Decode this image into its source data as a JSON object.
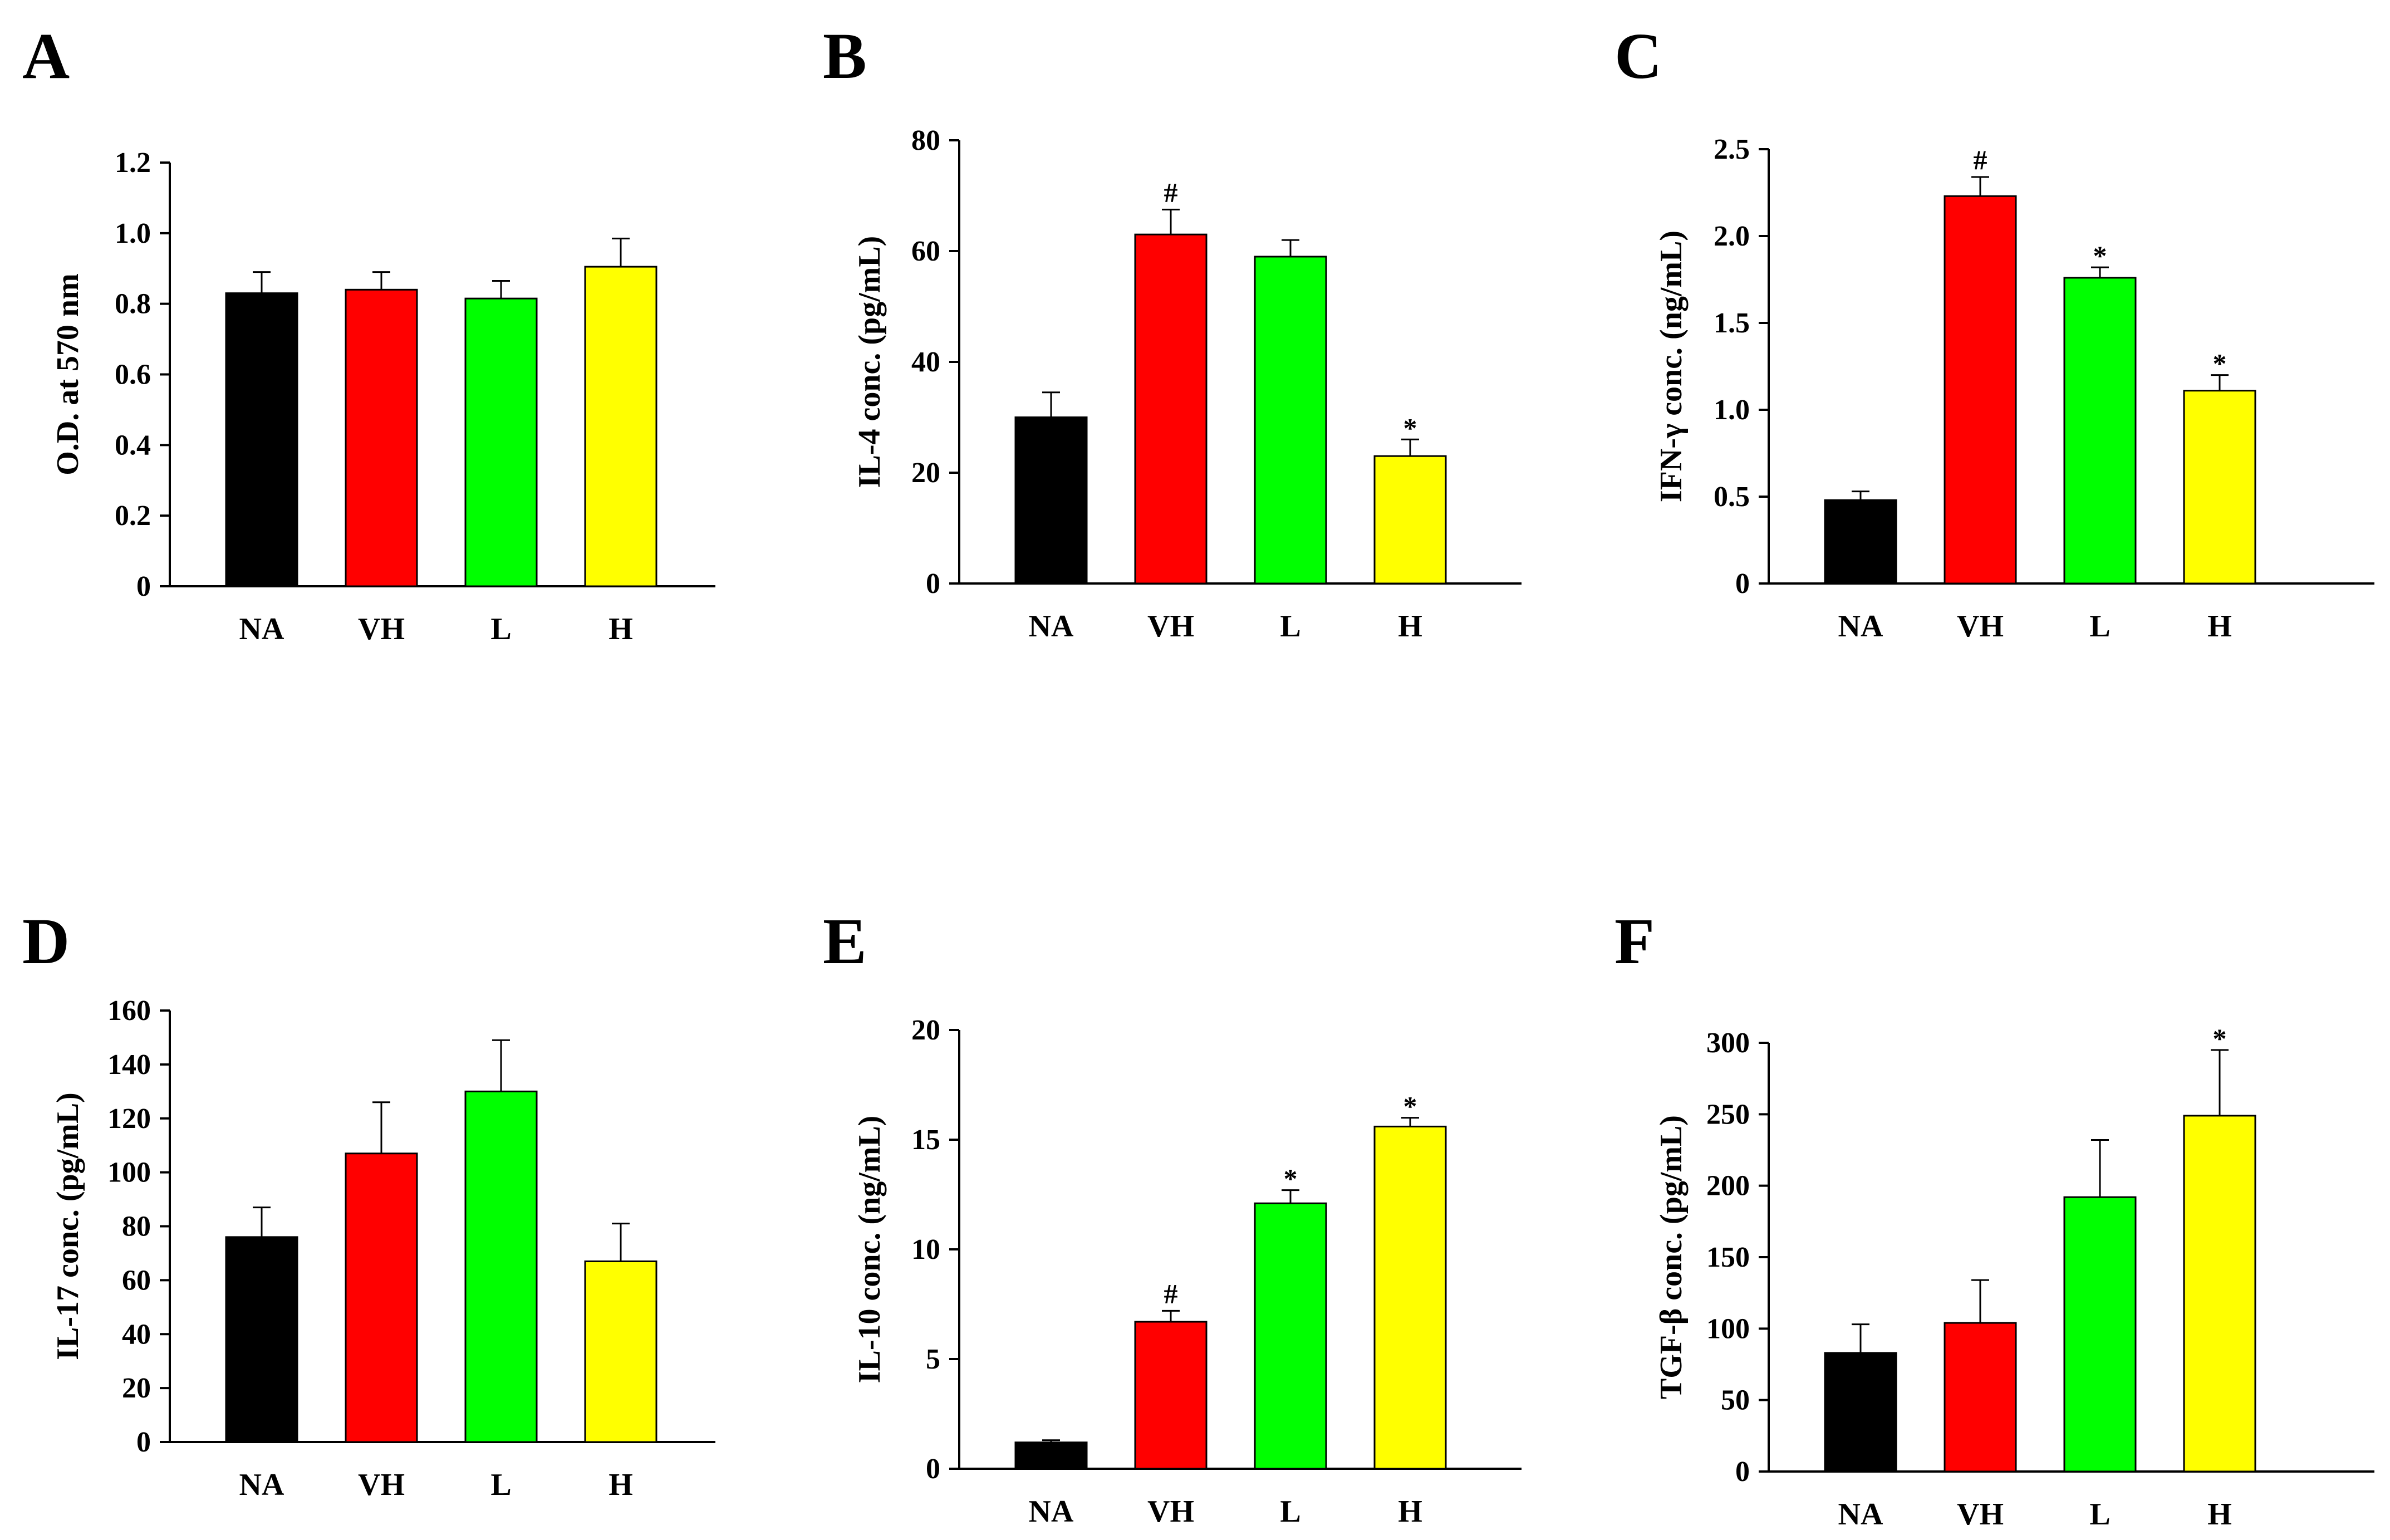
{
  "chart_data": [
    {
      "type": "bar",
      "panel": "A",
      "categories": [
        "NA",
        "VH",
        "L",
        "H"
      ],
      "values": [
        0.83,
        0.84,
        0.815,
        0.905
      ],
      "errors": [
        0.06,
        0.05,
        0.05,
        0.08
      ],
      "significance": [
        "",
        "",
        "",
        ""
      ],
      "colors": [
        "#000000",
        "#ff0000",
        "#00ff00",
        "#ffff00"
      ],
      "ylabel": "O.D. at 570 nm",
      "ylim": [
        0,
        1.2
      ],
      "yticks": [
        "0",
        "0.2",
        "0.4",
        "0.6",
        "0.8",
        "1.0",
        "1.2"
      ]
    },
    {
      "type": "bar",
      "panel": "B",
      "categories": [
        "NA",
        "VH",
        "L",
        "H"
      ],
      "values": [
        30,
        63,
        59,
        23
      ],
      "errors": [
        4.5,
        4.5,
        3,
        3
      ],
      "significance": [
        "",
        "#",
        "",
        "*"
      ],
      "colors": [
        "#000000",
        "#ff0000",
        "#00ff00",
        "#ffff00"
      ],
      "ylabel": "IL-4 conc. (pg/mL)",
      "ylim": [
        0,
        80
      ],
      "yticks": [
        "0",
        "20",
        "40",
        "60",
        "80"
      ]
    },
    {
      "type": "bar",
      "panel": "C",
      "categories": [
        "NA",
        "VH",
        "L",
        "H"
      ],
      "values": [
        0.48,
        2.23,
        1.76,
        1.11
      ],
      "errors": [
        0.05,
        0.11,
        0.06,
        0.09
      ],
      "significance": [
        "",
        "#",
        "*",
        "*"
      ],
      "colors": [
        "#000000",
        "#ff0000",
        "#00ff00",
        "#ffff00"
      ],
      "ylabel": "IFN-γ conc. (ng/mL)",
      "ylim": [
        0,
        2.5
      ],
      "yticks": [
        "0",
        "0.5",
        "1.0",
        "1.5",
        "2.0",
        "2.5"
      ]
    },
    {
      "type": "bar",
      "panel": "D",
      "categories": [
        "NA",
        "VH",
        "L",
        "H"
      ],
      "values": [
        76,
        107,
        130,
        67
      ],
      "errors": [
        11,
        19,
        19,
        14
      ],
      "significance": [
        "",
        "",
        "",
        ""
      ],
      "colors": [
        "#000000",
        "#ff0000",
        "#00ff00",
        "#ffff00"
      ],
      "ylabel": "IL-17 conc. (pg/mL)",
      "ylim": [
        0,
        160
      ],
      "yticks": [
        "0",
        "20",
        "40",
        "60",
        "80",
        "100",
        "120",
        "140",
        "160"
      ]
    },
    {
      "type": "bar",
      "panel": "E",
      "categories": [
        "NA",
        "VH",
        "L",
        "H"
      ],
      "values": [
        1.2,
        6.7,
        12.1,
        15.6
      ],
      "errors": [
        0.1,
        0.5,
        0.6,
        0.4
      ],
      "significance": [
        "",
        "#",
        "*",
        "*"
      ],
      "colors": [
        "#000000",
        "#ff0000",
        "#00ff00",
        "#ffff00"
      ],
      "ylabel": "IL-10 conc. (ng/mL)",
      "ylim": [
        0,
        20
      ],
      "yticks": [
        "0",
        "5",
        "10",
        "15",
        "20"
      ]
    },
    {
      "type": "bar",
      "panel": "F",
      "categories": [
        "NA",
        "VH",
        "L",
        "H"
      ],
      "values": [
        83,
        104,
        192,
        249
      ],
      "errors": [
        20,
        30,
        40,
        46
      ],
      "significance": [
        "",
        "",
        "",
        "*"
      ],
      "colors": [
        "#000000",
        "#ff0000",
        "#00ff00",
        "#ffff00"
      ],
      "ylabel": "TGF-β conc. (pg/mL)",
      "ylim": [
        0,
        300
      ],
      "yticks": [
        "0",
        "50",
        "100",
        "150",
        "200",
        "250",
        "300"
      ]
    }
  ]
}
